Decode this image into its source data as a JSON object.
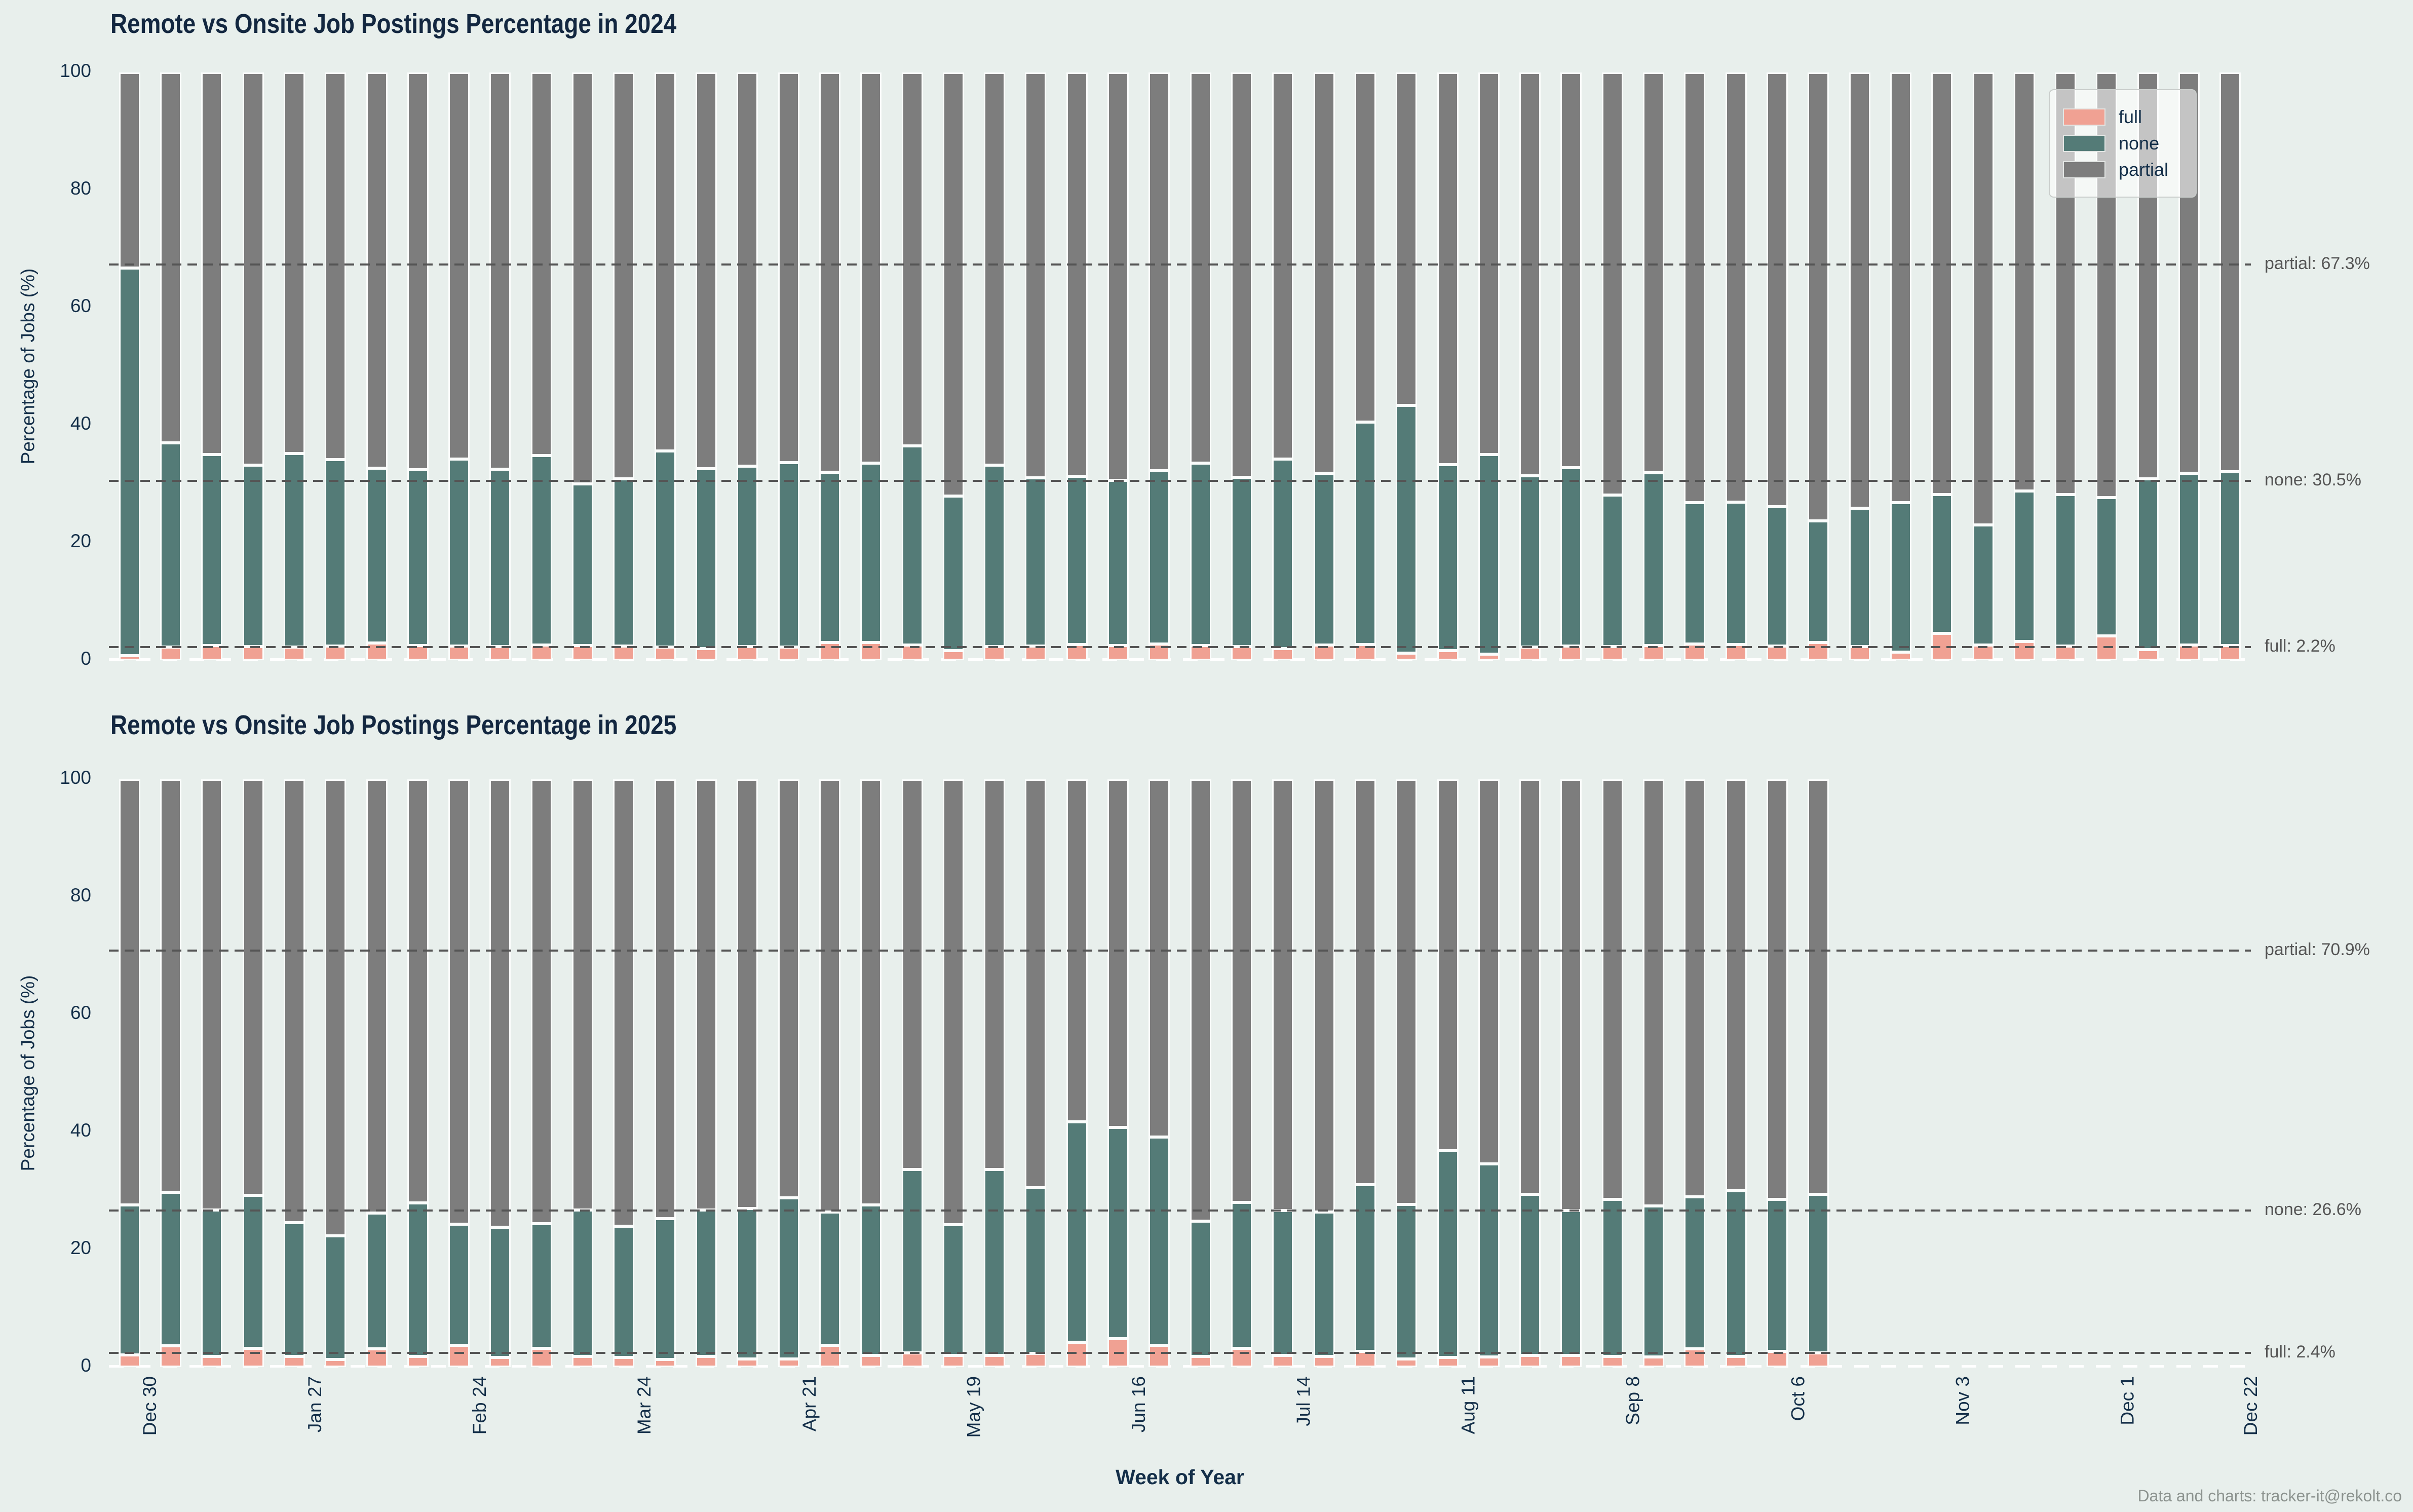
{
  "page": {
    "background": "#e8efec"
  },
  "labels": {
    "ylabel": "Percentage of Jobs (%)",
    "xlabel": "Week of Year",
    "footer": "Data and charts: tracker-it@rekolt.co"
  },
  "colors": {
    "background": "#e8efec",
    "full": "#f0a193",
    "none": "#547b77",
    "partial": "#7d7d7d",
    "bar_edge": "#fbfdfc",
    "title_text": "#132740",
    "axis_text": "#142f49",
    "annotation": "#555555",
    "footer_text": "#8c938f"
  },
  "legend": {
    "items": [
      {
        "label": "full",
        "color": "#f0a193"
      },
      {
        "label": "none",
        "color": "#547b77"
      },
      {
        "label": "partial",
        "color": "#7d7d7d"
      }
    ]
  },
  "yticks": [
    0,
    20,
    40,
    60,
    80,
    100
  ],
  "xticks": [
    {
      "index": 0,
      "label": "Dec 30"
    },
    {
      "index": 4,
      "label": "Jan 27"
    },
    {
      "index": 8,
      "label": "Feb 24"
    },
    {
      "index": 12,
      "label": "Mar 24"
    },
    {
      "index": 16,
      "label": "Apr 21"
    },
    {
      "index": 20,
      "label": "May 19"
    },
    {
      "index": 24,
      "label": "Jun 16"
    },
    {
      "index": 28,
      "label": "Jul 14"
    },
    {
      "index": 32,
      "label": "Aug 11"
    },
    {
      "index": 36,
      "label": "Sep 8"
    },
    {
      "index": 40,
      "label": "Oct 6"
    },
    {
      "index": 44,
      "label": "Nov 3"
    },
    {
      "index": 48,
      "label": "Dec 1"
    },
    {
      "index": 51,
      "label": "Dec 22"
    }
  ],
  "chart_data": [
    {
      "type": "bar",
      "stacked": true,
      "title": "Remote vs Onsite Job Postings Percentage in 2024",
      "xlabel": "Week of Year",
      "ylabel": "Percentage of Jobs (%)",
      "ylim": [
        0,
        100
      ],
      "grid": false,
      "legend_position": "upper right",
      "show_xticks": false,
      "categories": [
        "Dec 30",
        "Jan 6",
        "Jan 13",
        "Jan 20",
        "Jan 27",
        "Feb 3",
        "Feb 10",
        "Feb 17",
        "Feb 24",
        "Mar 3",
        "Mar 10",
        "Mar 17",
        "Mar 24",
        "Mar 31",
        "Apr 7",
        "Apr 14",
        "Apr 21",
        "Apr 28",
        "May 5",
        "May 12",
        "May 19",
        "May 26",
        "Jun 2",
        "Jun 9",
        "Jun 16",
        "Jun 23",
        "Jun 30",
        "Jul 7",
        "Jul 14",
        "Jul 21",
        "Jul 28",
        "Aug 4",
        "Aug 11",
        "Aug 18",
        "Aug 25",
        "Sep 1",
        "Sep 8",
        "Sep 15",
        "Sep 22",
        "Sep 29",
        "Oct 6",
        "Oct 13",
        "Oct 20",
        "Oct 27",
        "Nov 3",
        "Nov 10",
        "Nov 17",
        "Nov 24",
        "Dec 1",
        "Dec 8",
        "Dec 15",
        "Dec 22"
      ],
      "series": [
        {
          "name": "full",
          "values": [
            0.8,
            2.2,
            2.5,
            2.3,
            2.2,
            2.4,
            2.9,
            2.5,
            2.4,
            2.3,
            2.6,
            2.5,
            2.4,
            2.2,
            2.0,
            2.3,
            2.2,
            3.0,
            3.0,
            2.6,
            1.6,
            2.3,
            2.4,
            2.7,
            2.5,
            2.8,
            2.5,
            2.3,
            2.0,
            2.6,
            2.7,
            1.2,
            1.6,
            1.0,
            2.2,
            2.4,
            2.3,
            2.5,
            2.8,
            2.7,
            2.4,
            3.0,
            2.3,
            1.4,
            4.6,
            2.6,
            3.2,
            2.4,
            4.1,
            1.8,
            2.6,
            2.5
          ]
        },
        {
          "name": "none",
          "values": [
            65.9,
            34.8,
            32.5,
            30.9,
            33.0,
            31.7,
            29.8,
            29.9,
            31.8,
            30.2,
            32.2,
            27.5,
            28.5,
            33.4,
            30.6,
            30.7,
            31.4,
            29.0,
            30.5,
            33.9,
            26.3,
            30.9,
            28.6,
            28.6,
            28.1,
            29.4,
            31.0,
            28.8,
            32.2,
            29.2,
            37.8,
            42.2,
            31.7,
            34.0,
            29.2,
            30.4,
            25.8,
            29.4,
            24.0,
            24.2,
            23.7,
            20.7,
            23.6,
            25.4,
            23.6,
            20.4,
            25.6,
            25.8,
            23.6,
            29.1,
            29.2,
            29.6
          ]
        },
        {
          "name": "partial",
          "values": [
            33.3,
            63.0,
            65.0,
            66.8,
            64.8,
            65.9,
            67.3,
            67.6,
            65.8,
            67.5,
            65.2,
            70.0,
            69.1,
            64.4,
            67.4,
            67.0,
            66.4,
            68.0,
            66.5,
            63.5,
            72.1,
            66.8,
            69.0,
            68.7,
            69.4,
            67.8,
            66.5,
            68.9,
            65.8,
            68.2,
            59.5,
            56.6,
            66.7,
            65.0,
            68.6,
            67.2,
            71.9,
            68.1,
            73.2,
            73.1,
            73.9,
            76.3,
            74.1,
            73.2,
            71.8,
            77.0,
            71.2,
            71.8,
            72.3,
            69.1,
            68.2,
            67.9
          ]
        }
      ],
      "annotations": [
        {
          "series": "partial",
          "label": "partial: 67.3%",
          "value": 67.3
        },
        {
          "series": "none",
          "label": "none: 30.5%",
          "value": 30.5
        },
        {
          "series": "full",
          "label": "full: 2.2%",
          "value": 2.2
        }
      ]
    },
    {
      "type": "bar",
      "stacked": true,
      "title": "Remote vs Onsite Job Postings Percentage in 2025",
      "xlabel": "Week of Year",
      "ylabel": "Percentage of Jobs (%)",
      "ylim": [
        0,
        100
      ],
      "grid": false,
      "legend_position": "none",
      "show_xticks": true,
      "categories": [
        "Dec 30",
        "Jan 6",
        "Jan 13",
        "Jan 20",
        "Jan 27",
        "Feb 3",
        "Feb 10",
        "Feb 17",
        "Feb 24",
        "Mar 3",
        "Mar 10",
        "Mar 17",
        "Mar 24",
        "Mar 31",
        "Apr 7",
        "Apr 14",
        "Apr 21",
        "Apr 28",
        "May 5",
        "May 12",
        "May 19",
        "May 26",
        "Jun 2",
        "Jun 9",
        "Jun 16",
        "Jun 23",
        "Jun 30",
        "Jul 7",
        "Jul 14",
        "Jul 21",
        "Jul 28",
        "Aug 4",
        "Aug 11",
        "Aug 18",
        "Aug 25",
        "Sep 1",
        "Sep 8",
        "Sep 15",
        "Sep 22",
        "Sep 29",
        "Oct 6",
        "Oct 13"
      ],
      "series": [
        {
          "name": "full",
          "values": [
            2.1,
            3.6,
            1.8,
            3.2,
            1.8,
            1.3,
            3.1,
            1.8,
            3.7,
            1.6,
            3.2,
            1.8,
            1.6,
            1.3,
            1.8,
            1.4,
            1.4,
            3.7,
            2.0,
            2.4,
            2.0,
            2.0,
            2.3,
            4.2,
            4.8,
            3.7,
            1.8,
            3.2,
            2.0,
            1.8,
            2.7,
            1.4,
            1.6,
            1.7,
            2.0,
            2.0,
            1.8,
            1.7,
            3.1,
            1.8,
            2.7,
            2.4
          ]
        },
        {
          "name": "none",
          "values": [
            25.5,
            26.1,
            24.9,
            26.0,
            22.8,
            21.0,
            23.1,
            26.1,
            20.6,
            22.2,
            21.2,
            24.9,
            22.4,
            24.0,
            24.9,
            25.6,
            27.4,
            22.7,
            25.6,
            31.2,
            22.2,
            31.6,
            28.2,
            37.5,
            36.0,
            35.4,
            23.0,
            24.8,
            24.6,
            24.6,
            28.3,
            26.3,
            35.2,
            32.9,
            27.4,
            24.6,
            26.7,
            25.7,
            25.9,
            28.2,
            25.8,
            27.0
          ]
        },
        {
          "name": "partial",
          "values": [
            72.4,
            70.3,
            73.3,
            70.8,
            75.4,
            77.7,
            73.8,
            72.1,
            75.7,
            76.2,
            75.6,
            73.3,
            76.0,
            74.7,
            73.3,
            73.0,
            71.2,
            73.6,
            72.4,
            66.4,
            75.8,
            66.4,
            69.5,
            58.3,
            59.2,
            60.9,
            75.2,
            72.0,
            73.4,
            73.6,
            69.0,
            72.3,
            63.2,
            65.4,
            70.6,
            73.4,
            71.5,
            72.6,
            71.0,
            70.0,
            71.5,
            70.6
          ]
        }
      ],
      "annotations": [
        {
          "series": "partial",
          "label": "partial: 70.9%",
          "value": 70.9
        },
        {
          "series": "none",
          "label": "none: 26.6%",
          "value": 26.6
        },
        {
          "series": "full",
          "label": "full: 2.4%",
          "value": 2.4
        }
      ]
    }
  ]
}
